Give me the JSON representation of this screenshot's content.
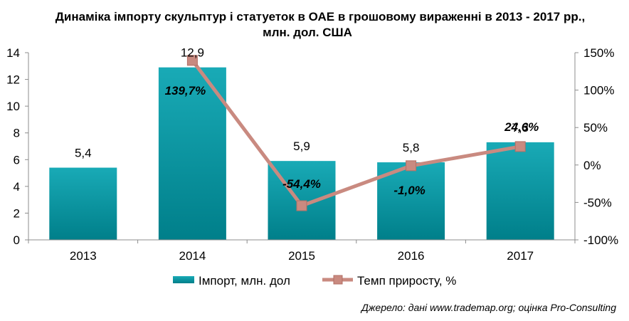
{
  "title_line1": "Динаміка імпорту скульптур і статуеток в ОАЕ в грошовому вираженні в 2013 - 2017 рр.,",
  "title_line2": "млн. дол. США",
  "source": "Джерело: дані www.trademap.org; оцінка Pro-Consulting",
  "colors": {
    "bar": "#0097a4",
    "bar_light": "#2bb8c3",
    "line": "#c98a80",
    "marker": "#c98a80"
  },
  "chart_data": {
    "type": "bar",
    "categories": [
      "2013",
      "2014",
      "2015",
      "2016",
      "2017"
    ],
    "series": [
      {
        "name": "Імпорт, млн. дол",
        "type": "bar",
        "axis": "left",
        "values": [
          5.4,
          12.9,
          5.9,
          5.8,
          7.3
        ],
        "labels": [
          "5,4",
          "12,9",
          "5,9",
          "5,8",
          "7,3"
        ]
      },
      {
        "name": "Темп приросту, %",
        "type": "line",
        "axis": "right",
        "x": [
          "2014",
          "2015",
          "2016",
          "2017"
        ],
        "values": [
          139.7,
          -54.4,
          -1.0,
          24.6
        ],
        "labels": [
          "139,7%",
          "-54,4%",
          "-1,0%",
          "24,6%"
        ]
      }
    ],
    "y_left": {
      "min": 0,
      "max": 14,
      "ticks": [
        "0",
        "2",
        "4",
        "6",
        "8",
        "10",
        "12",
        "14"
      ]
    },
    "y_right": {
      "min": -100,
      "max": 150,
      "ticks": [
        "-100%",
        "-50%",
        "0%",
        "50%",
        "100%",
        "150%"
      ]
    },
    "grid": false,
    "legend_position": "bottom"
  }
}
